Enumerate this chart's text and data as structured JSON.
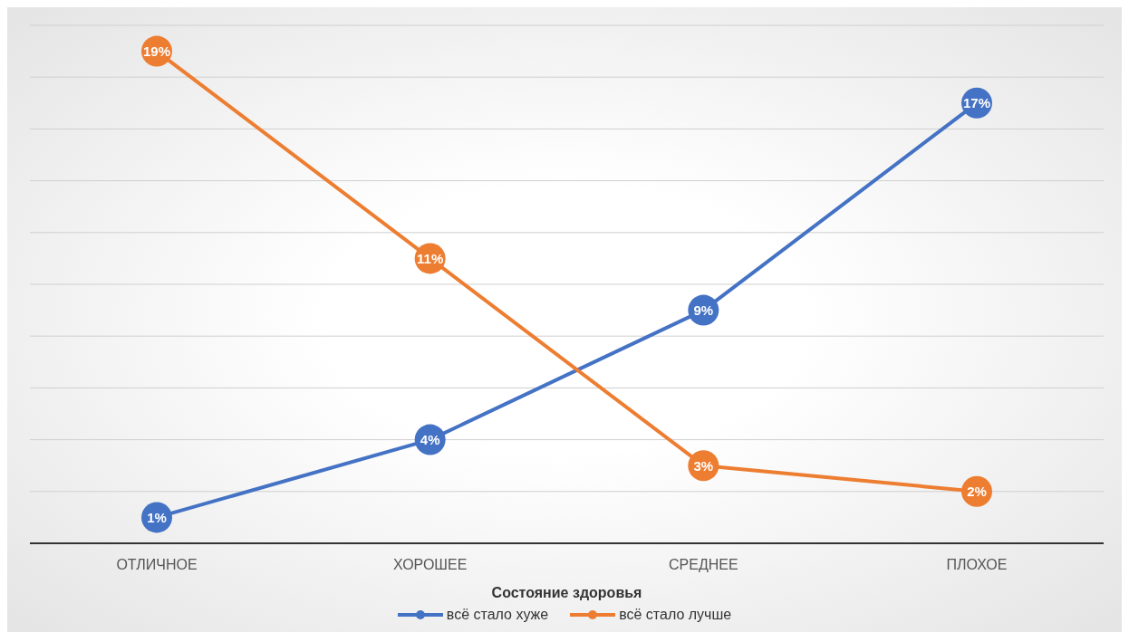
{
  "chart_data": {
    "type": "line",
    "xlabel": "Состояние здоровья",
    "categories": [
      "ОТЛИЧНОЕ",
      "ХОРОШЕЕ",
      "СРЕДНЕЕ",
      "ПЛОХОЕ"
    ],
    "series": [
      {
        "name": "всё стало хуже",
        "color": "#4472c4",
        "values": [
          1,
          4,
          9,
          17
        ],
        "value_labels": [
          "1%",
          "4%",
          "9%",
          "17%"
        ]
      },
      {
        "name": "всё стало лучше",
        "color": "#ed7d31",
        "values": [
          19,
          11,
          3,
          2
        ],
        "value_labels": [
          "19%",
          "11%",
          "3%",
          "2%"
        ]
      }
    ],
    "ylim": [
      0,
      20
    ],
    "yticks": [
      {
        "value": 0,
        "label": null
      },
      {
        "value": 2,
        "label": null
      },
      {
        "value": 4,
        "label": null
      },
      {
        "value": 6,
        "label": null
      },
      {
        "value": 8,
        "label": null
      },
      {
        "value": 10,
        "label": null
      },
      {
        "value": 12,
        "label": null
      },
      {
        "value": 14,
        "label": null
      },
      {
        "value": 16,
        "label": null
      },
      {
        "value": 18,
        "label": null
      },
      {
        "value": 20,
        "label": null
      }
    ],
    "tick_labels": "x",
    "grid": "y",
    "legend": "bottom",
    "marker": "circle",
    "line_style": "solid"
  }
}
